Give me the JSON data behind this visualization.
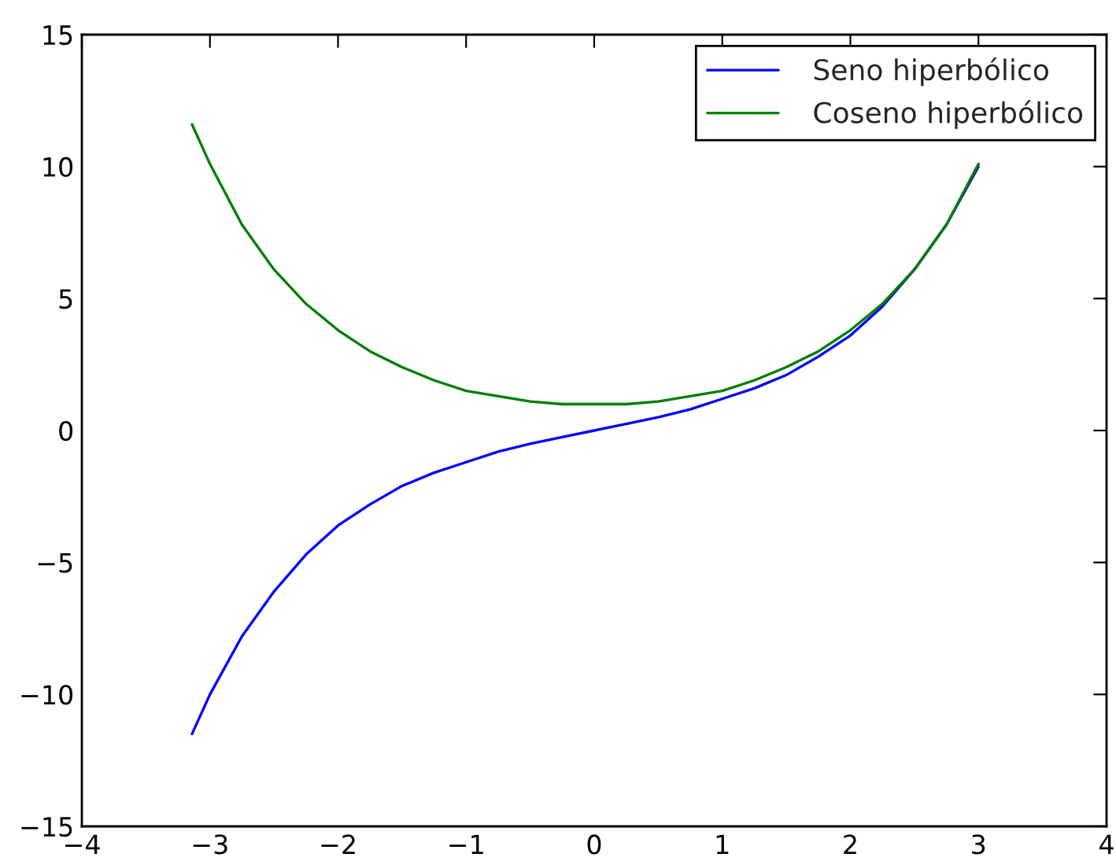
{
  "chart_data": {
    "type": "line",
    "x": [
      -3.14,
      -3,
      -2.75,
      -2.5,
      -2.25,
      -2,
      -1.75,
      -1.5,
      -1.25,
      -1,
      -0.75,
      -0.5,
      -0.25,
      0,
      0.25,
      0.5,
      0.75,
      1,
      1.25,
      1.5,
      1.75,
      2,
      2.25,
      2.5,
      2.75,
      3
    ],
    "series": [
      {
        "name": "Seno hiperbólico",
        "color": "#0000ff",
        "values": [
          -11.5,
          -10.0,
          -7.8,
          -6.1,
          -4.7,
          -3.6,
          -2.8,
          -2.1,
          -1.6,
          -1.2,
          -0.8,
          -0.5,
          -0.25,
          0,
          0.25,
          0.5,
          0.8,
          1.2,
          1.6,
          2.1,
          2.8,
          3.6,
          4.7,
          6.1,
          7.8,
          10.0
        ]
      },
      {
        "name": "Coseno hiperbólico",
        "color": "#008000",
        "values": [
          11.6,
          10.1,
          7.8,
          6.1,
          4.8,
          3.8,
          3.0,
          2.4,
          1.9,
          1.5,
          1.3,
          1.1,
          1.0,
          1.0,
          1.0,
          1.1,
          1.3,
          1.5,
          1.9,
          2.4,
          3.0,
          3.8,
          4.8,
          6.1,
          7.8,
          10.1
        ]
      }
    ],
    "xlim": [
      -4,
      4
    ],
    "xticks": [
      {
        "value": -4,
        "label": "−4"
      },
      {
        "value": -3,
        "label": "−3"
      },
      {
        "value": -2,
        "label": "−2"
      },
      {
        "value": -1,
        "label": "−1"
      },
      0,
      1,
      2,
      3,
      4
    ],
    "ylim": [
      -15,
      15
    ],
    "yticks": [
      {
        "value": -15,
        "label": "−15"
      },
      {
        "value": -10,
        "label": "−10"
      },
      {
        "value": -5,
        "label": "−5"
      },
      0,
      5,
      10,
      15
    ],
    "legend": "top right",
    "line_style": "solid",
    "marker": "none"
  }
}
